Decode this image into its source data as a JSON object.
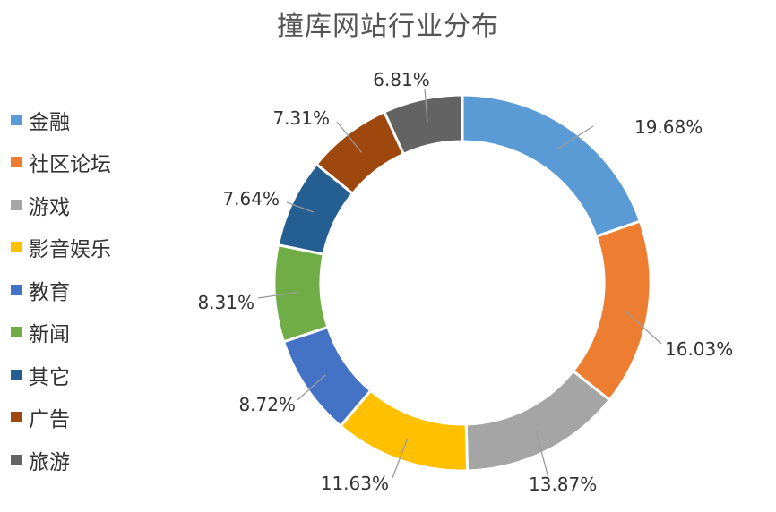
{
  "chart_data": {
    "type": "pie",
    "title": "撞库网站行业分布",
    "categories": [
      "金融",
      "社区论坛",
      "游戏",
      "影音娱乐",
      "教育",
      "新闻",
      "其它",
      "广告",
      "旅游"
    ],
    "values": [
      19.68,
      16.03,
      13.87,
      11.63,
      8.72,
      8.31,
      7.64,
      7.31,
      6.81
    ],
    "value_labels": [
      "19.68%",
      "16.03%",
      "13.87%",
      "11.63%",
      "8.72%",
      "8.31%",
      "7.64%",
      "7.31%",
      "6.81%"
    ],
    "colors": [
      "#5B9BD5",
      "#ED7D31",
      "#A5A5A5",
      "#FFC000",
      "#4472C4",
      "#70AD47",
      "#255E91",
      "#9E480E",
      "#636363"
    ],
    "legend_position": "left",
    "donut": true
  }
}
